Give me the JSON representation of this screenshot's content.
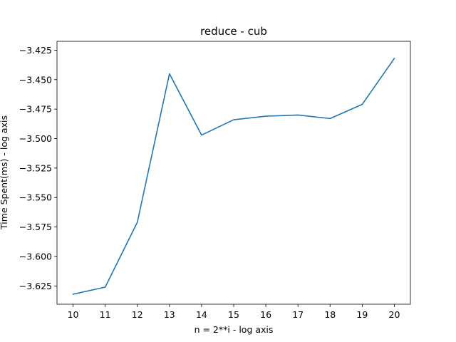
{
  "chart_data": {
    "type": "line",
    "title": "reduce - cub",
    "xlabel": "n = 2**i - log axis",
    "ylabel": "Time Spent(ms) - log axis",
    "xlim": [
      9.5,
      20.5
    ],
    "ylim": [
      -3.6405,
      -3.4175
    ],
    "x_ticks": [
      10,
      11,
      12,
      13,
      14,
      15,
      16,
      17,
      18,
      19,
      20
    ],
    "y_ticks": [
      -3.425,
      -3.45,
      -3.475,
      -3.5,
      -3.525,
      -3.55,
      -3.575,
      -3.6,
      -3.625
    ],
    "y_tick_labels": [
      "−3.425",
      "−3.450",
      "−3.475",
      "−3.500",
      "−3.525",
      "−3.550",
      "−3.575",
      "−3.600",
      "−3.625"
    ],
    "grid": false,
    "series": [
      {
        "color": "#1f77b4",
        "x": [
          10,
          11,
          12,
          13,
          14,
          15,
          16,
          17,
          18,
          19,
          20
        ],
        "y": [
          -3.632,
          -3.626,
          -3.571,
          -3.445,
          -3.497,
          -3.484,
          -3.481,
          -3.48,
          -3.483,
          -3.471,
          -3.432
        ]
      }
    ]
  }
}
